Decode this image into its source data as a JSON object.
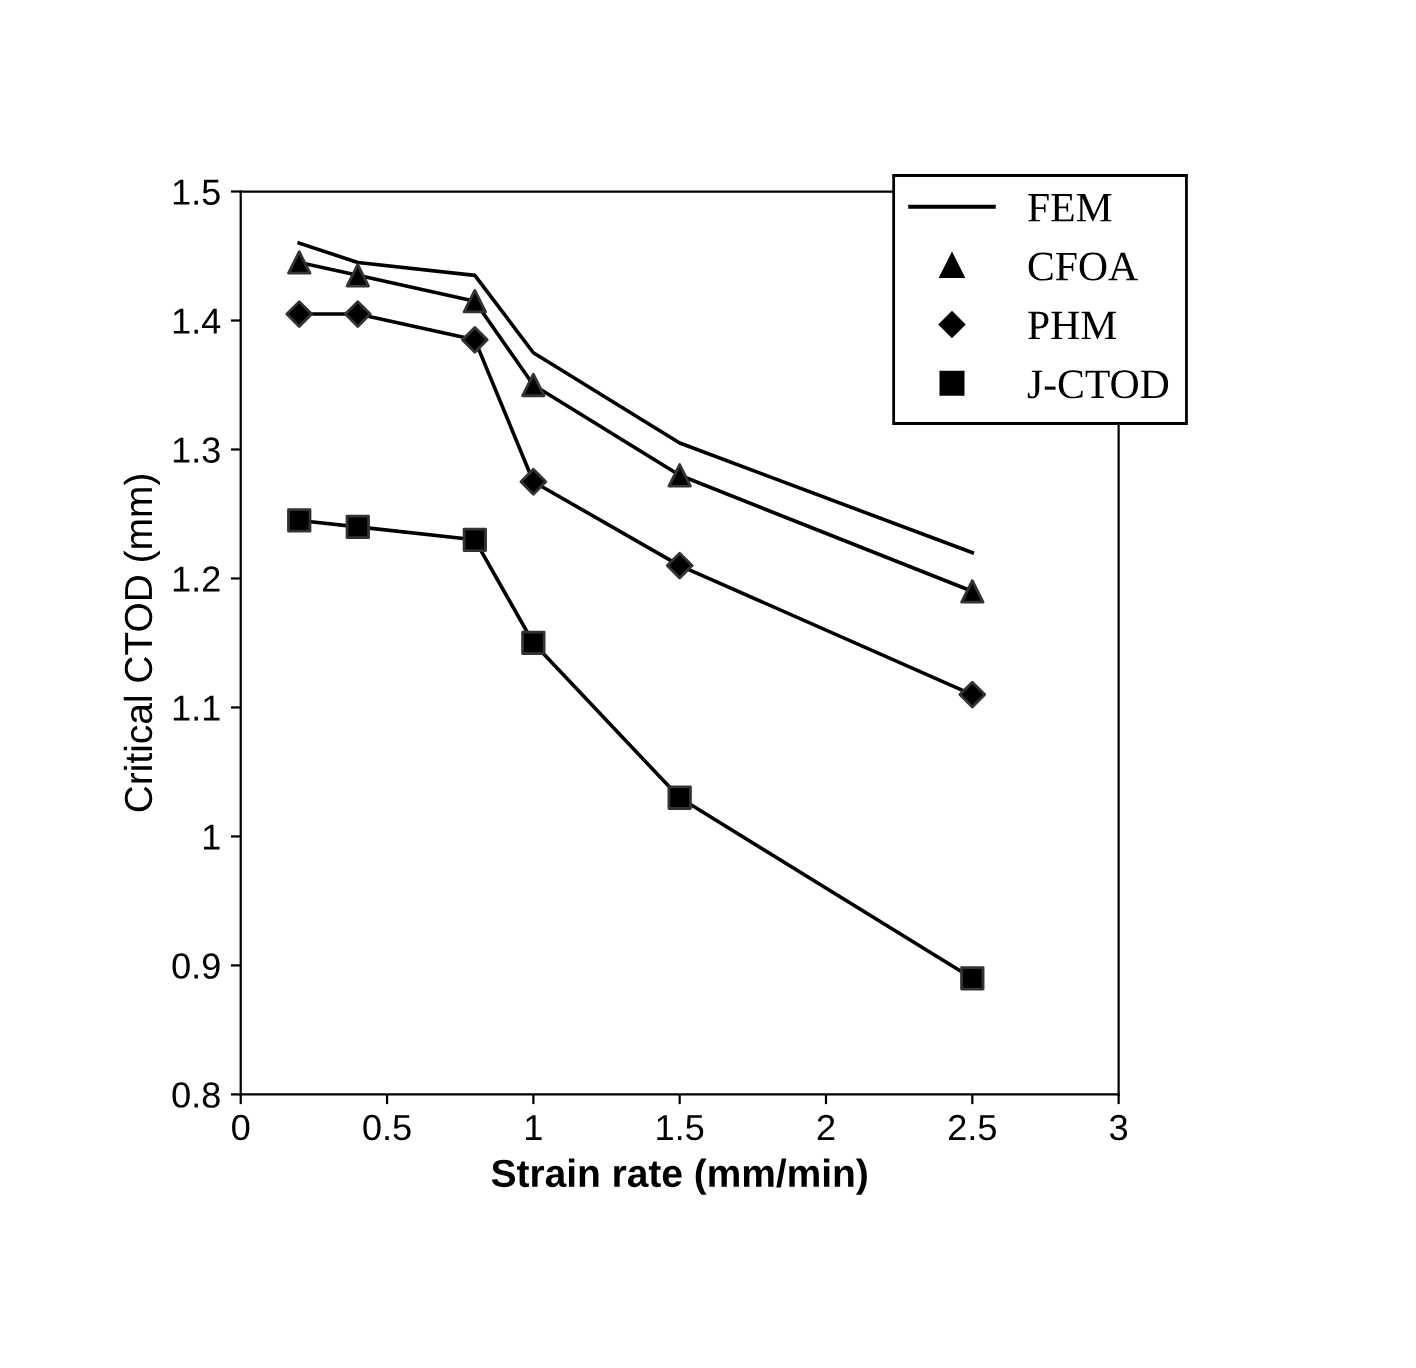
{
  "chart_data": {
    "type": "line",
    "xlabel": "Strain rate (mm/min)",
    "ylabel": "Critical CTOD (mm)",
    "x": [
      0.2,
      0.4,
      0.8,
      1.0,
      1.5,
      2.5
    ],
    "series": [
      {
        "name": "FEM",
        "color": "#000000",
        "marker": "none",
        "values": [
          1.46,
          1.445,
          1.435,
          1.375,
          1.305,
          1.22
        ]
      },
      {
        "name": "CFOA",
        "color": "#000000",
        "marker": "triangle",
        "values": [
          1.445,
          1.435,
          1.415,
          1.35,
          1.28,
          1.19
        ]
      },
      {
        "name": "PHM",
        "color": "#000000",
        "marker": "diamond",
        "values": [
          1.405,
          1.405,
          1.385,
          1.275,
          1.21,
          1.11
        ]
      },
      {
        "name": "J-CTOD",
        "color": "#000000",
        "marker": "square",
        "values": [
          1.245,
          1.24,
          1.23,
          1.15,
          1.03,
          0.89
        ]
      }
    ],
    "xlim": [
      0,
      3
    ],
    "xticks": [
      0,
      0.5,
      1,
      1.5,
      2,
      2.5,
      3
    ],
    "ylim": [
      0.8,
      1.5
    ],
    "yticks": [
      0.8,
      0.9,
      1,
      1.1,
      1.2,
      1.3,
      1.4,
      1.5
    ],
    "grid": false,
    "legend": "top right",
    "line_style": "solid"
  }
}
